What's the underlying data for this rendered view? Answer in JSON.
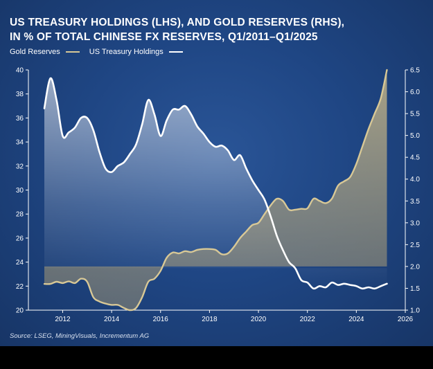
{
  "title_line1": "US TREASURY HOLDINGS (LHS), AND GOLD RESERVES (RHS),",
  "title_line2": "IN % OF TOTAL CHINESE FX RESERVES, Q1/2011–Q1/2025",
  "source": "Source: LSEG, MiningVisuals, Incrementum AG",
  "colors": {
    "gold": "#d8c896",
    "treasury": "#ffffff",
    "background": "#1f4684"
  },
  "chart_data": {
    "type": "line",
    "title": "US TREASURY HOLDINGS (LHS), AND GOLD RESERVES (RHS), IN % OF TOTAL CHINESE FX RESERVES, Q1/2011–Q1/2025",
    "x_ticks": [
      2012,
      2014,
      2016,
      2018,
      2020,
      2022,
      2024,
      2026
    ],
    "xlim": [
      2010.6,
      2026
    ],
    "y_left": {
      "ylim": [
        20,
        40
      ],
      "ticks": [
        20,
        22,
        24,
        26,
        28,
        30,
        32,
        34,
        36,
        38,
        40
      ]
    },
    "y_right": {
      "ylim": [
        1.0,
        6.5
      ],
      "ticks": [
        "1.0",
        "1.5",
        "2.0",
        "2.5",
        "3.0",
        "3.5",
        "4.0",
        "4.5",
        "5.0",
        "5.5",
        "6.0",
        "6.5"
      ]
    },
    "grid": false,
    "legend_position": "top-left",
    "series": [
      {
        "name": "Gold Reserves",
        "axis": "right",
        "x": [
          2011.25,
          2011.5,
          2011.75,
          2012.0,
          2012.25,
          2012.5,
          2012.75,
          2013.0,
          2013.25,
          2013.5,
          2013.75,
          2014.0,
          2014.25,
          2014.5,
          2014.75,
          2015.0,
          2015.25,
          2015.5,
          2015.75,
          2016.0,
          2016.25,
          2016.5,
          2016.75,
          2017.0,
          2017.25,
          2017.5,
          2017.75,
          2018.0,
          2018.25,
          2018.5,
          2018.75,
          2019.0,
          2019.25,
          2019.5,
          2019.75,
          2020.0,
          2020.25,
          2020.5,
          2020.75,
          2021.0,
          2021.25,
          2021.5,
          2021.75,
          2022.0,
          2022.25,
          2022.5,
          2022.75,
          2023.0,
          2023.25,
          2023.5,
          2023.75,
          2024.0,
          2024.25,
          2024.5,
          2024.75,
          2025.0,
          2025.25
        ],
        "values": [
          1.6,
          1.6,
          1.65,
          1.62,
          1.66,
          1.62,
          1.72,
          1.65,
          1.3,
          1.2,
          1.15,
          1.12,
          1.12,
          1.05,
          1.0,
          1.05,
          1.3,
          1.65,
          1.72,
          1.9,
          2.2,
          2.32,
          2.3,
          2.35,
          2.33,
          2.38,
          2.4,
          2.4,
          2.38,
          2.28,
          2.3,
          2.45,
          2.65,
          2.8,
          2.95,
          3.0,
          3.2,
          3.4,
          3.55,
          3.5,
          3.3,
          3.3,
          3.32,
          3.33,
          3.55,
          3.5,
          3.45,
          3.55,
          3.85,
          3.95,
          4.05,
          4.35,
          4.75,
          5.15,
          5.5,
          5.85,
          6.5
        ]
      },
      {
        "name": "US Treasury Holdings",
        "axis": "left",
        "x": [
          2011.25,
          2011.5,
          2011.75,
          2012.0,
          2012.25,
          2012.5,
          2012.75,
          2013.0,
          2013.25,
          2013.5,
          2013.75,
          2014.0,
          2014.25,
          2014.5,
          2014.75,
          2015.0,
          2015.25,
          2015.5,
          2015.75,
          2016.0,
          2016.25,
          2016.5,
          2016.75,
          2017.0,
          2017.25,
          2017.5,
          2017.75,
          2018.0,
          2018.25,
          2018.5,
          2018.75,
          2019.0,
          2019.25,
          2019.5,
          2019.75,
          2020.0,
          2020.25,
          2020.5,
          2020.75,
          2021.0,
          2021.25,
          2021.5,
          2021.75,
          2022.0,
          2022.25,
          2022.5,
          2022.75,
          2023.0,
          2023.25,
          2023.5,
          2023.75,
          2024.0,
          2024.25,
          2024.5,
          2024.75,
          2025.0,
          2025.25
        ],
        "values": [
          36.8,
          39.3,
          37.5,
          34.5,
          34.8,
          35.2,
          36.0,
          36.0,
          35.0,
          33.2,
          31.8,
          31.5,
          32.0,
          32.3,
          33.0,
          33.8,
          35.5,
          37.5,
          36.3,
          34.5,
          35.8,
          36.7,
          36.7,
          37.0,
          36.3,
          35.3,
          34.7,
          34.0,
          33.6,
          33.7,
          33.3,
          32.5,
          32.9,
          31.8,
          30.8,
          30.0,
          29.2,
          27.8,
          26.2,
          25.0,
          24.0,
          23.5,
          22.5,
          22.3,
          21.8,
          22.0,
          21.9,
          22.3,
          22.1,
          22.2,
          22.1,
          22.0,
          21.8,
          21.9,
          21.8,
          22.0,
          22.2
        ]
      }
    ]
  }
}
